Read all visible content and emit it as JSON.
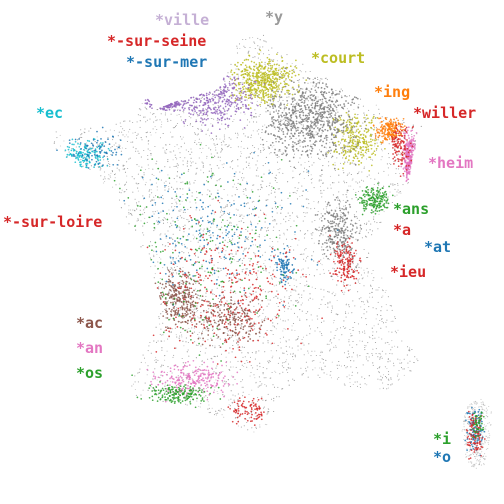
{
  "colors": {
    "background": "#ffffff",
    "baseline": "#9a9a9a",
    "lavender": "#c5b0d5",
    "red": "#d62728",
    "blue": "#1f77b4",
    "olive": "#bcbd22",
    "orange": "#ff7f0e",
    "cyan": "#17becf",
    "pink": "#e377c2",
    "green": "#2ca02c",
    "brown": "#8c564b",
    "purple": "#9467bd",
    "gray": "#7f7f7f"
  },
  "labels": {
    "ville": "*ville",
    "y": "*y",
    "sur_seine": "*-sur-seine",
    "sur_mer": "*-sur-mer",
    "court": "*court",
    "ing": "*ing",
    "willer": "*willer",
    "ec": "*ec",
    "heim": "*heim",
    "ans": "*ans",
    "sur_loire": "*-sur-loire",
    "a": "*a",
    "at": "*at",
    "ieu": "*ieu",
    "ac": "*ac",
    "an": "*an",
    "os": "*os",
    "i": "*i",
    "o": "*o"
  }
}
